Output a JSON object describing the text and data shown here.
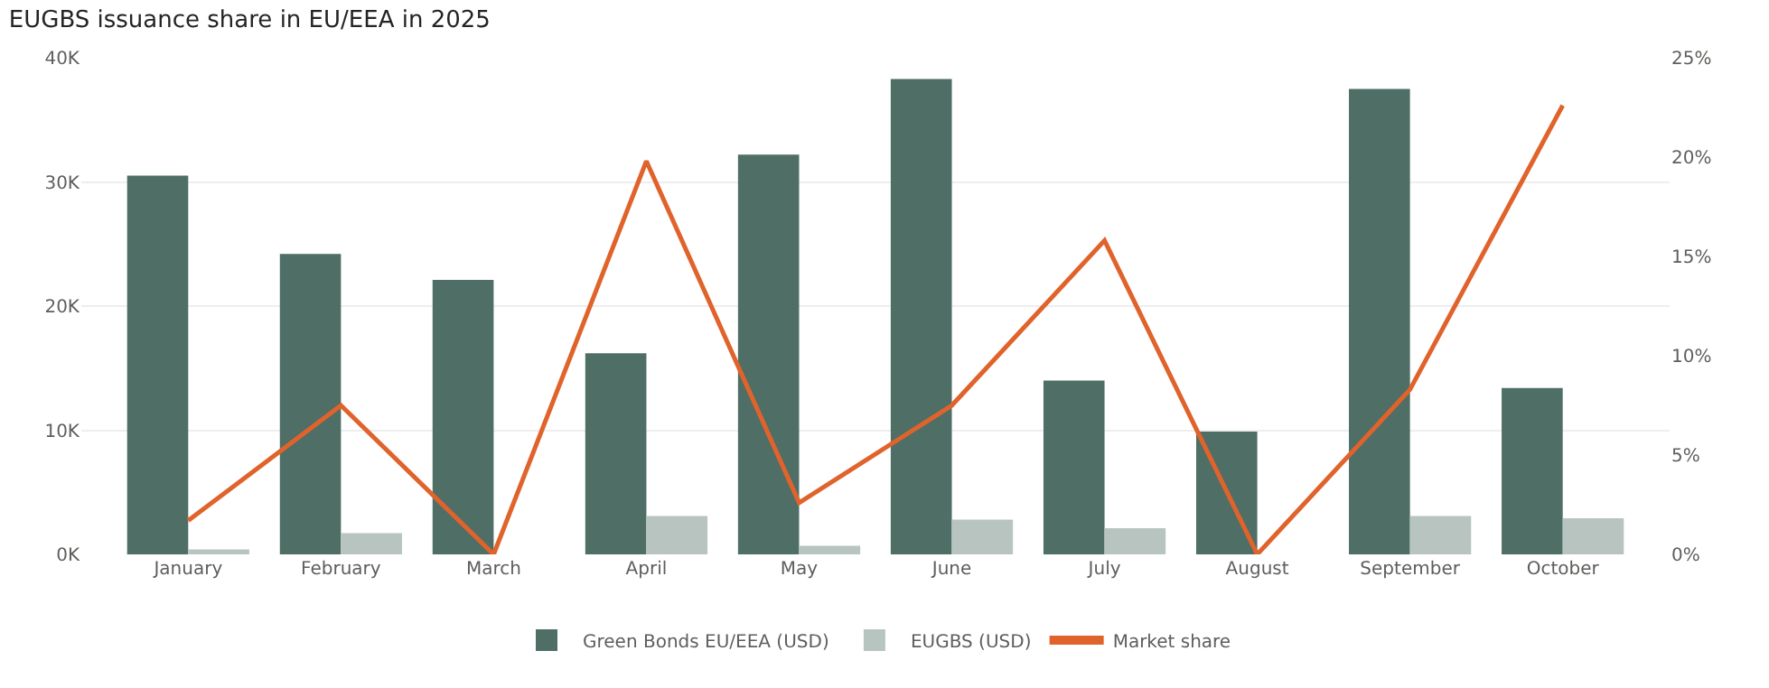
{
  "chart_data": {
    "type": "bar",
    "title": "EUGBS issuance share in EU/EEA in 2025",
    "categories": [
      "January",
      "February",
      "March",
      "April",
      "May",
      "June",
      "July",
      "August",
      "September",
      "October"
    ],
    "series": [
      {
        "name": "Green Bonds EU/EEA (USD)",
        "color": "#4e6e66",
        "values": [
          30.5,
          24.2,
          22.1,
          16.2,
          32.2,
          38.3,
          14.0,
          9.9,
          37.5,
          13.4
        ]
      },
      {
        "name": "EUGBS (USD)",
        "color": "#b8c4bf",
        "values": [
          0.4,
          1.7,
          0,
          3.1,
          0.7,
          2.8,
          2.1,
          0,
          3.1,
          2.9
        ]
      },
      {
        "name": "Market share",
        "color": "#e0632c",
        "type": "line",
        "axis": "y2",
        "values": [
          1.7,
          7.5,
          0,
          19.8,
          2.6,
          7.5,
          15.8,
          0,
          8.3,
          22.6
        ]
      }
    ],
    "ylim": [
      0,
      40
    ],
    "yticks": [
      {
        "value": 0,
        "label": "0K"
      },
      {
        "value": 10,
        "label": "10K"
      },
      {
        "value": 20,
        "label": "20K"
      },
      {
        "value": 30,
        "label": "30K"
      },
      {
        "value": 40,
        "label": "40K"
      }
    ],
    "y2lim": [
      0,
      25
    ],
    "y2ticks": [
      {
        "value": 0,
        "label": "0%"
      },
      {
        "value": 5,
        "label": "5%"
      },
      {
        "value": 10,
        "label": "10%"
      },
      {
        "value": 15,
        "label": "15%"
      },
      {
        "value": 20,
        "label": "20%"
      },
      {
        "value": 25,
        "label": "25%"
      }
    ],
    "grid": "y",
    "legend": "bottom",
    "marker": "none",
    "line_style": "solid"
  }
}
